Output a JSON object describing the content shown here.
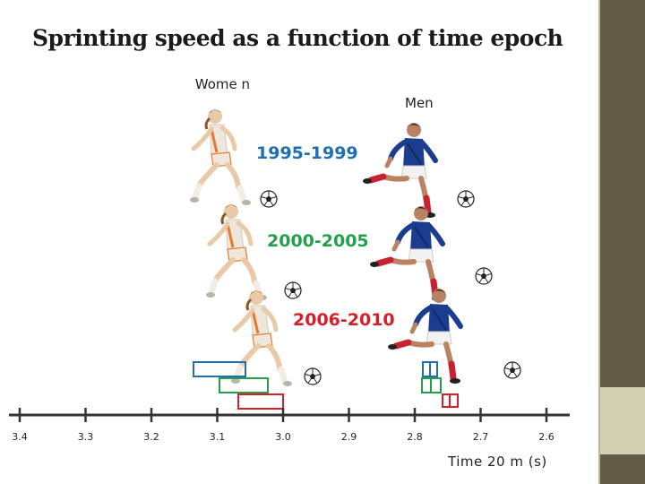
{
  "title": "Sprinting speed as a function of time epoch",
  "labels": {
    "women": "Wome n",
    "men": "Men",
    "x_axis": "Time 20 m (s)"
  },
  "epochs": [
    {
      "label": "1995-1999",
      "color": "#1f6fb2"
    },
    {
      "label": "2000-2005",
      "color": "#22a14a"
    },
    {
      "label": "2006-2010",
      "color": "#d51f2b"
    }
  ],
  "axis": {
    "ticks": [
      "3.4",
      "3.3",
      "3.2",
      "3.1",
      "3.0",
      "2.9",
      "2.8",
      "2.7",
      "2.6"
    ],
    "range": [
      3.4,
      2.6
    ],
    "direction": "decreasing to the right"
  },
  "colors": {
    "women_kit": "#e8e2d8",
    "women_accent": "#e57a2f",
    "men_shirt": "#1b3d8f",
    "men_socks": "#c62231",
    "sidebar": "#615c45",
    "sidebar_tab": "#d2d0b3"
  },
  "icons": [
    "female-sprinter-figure",
    "male-sprinter-figure",
    "soccer-ball-icon"
  ]
}
